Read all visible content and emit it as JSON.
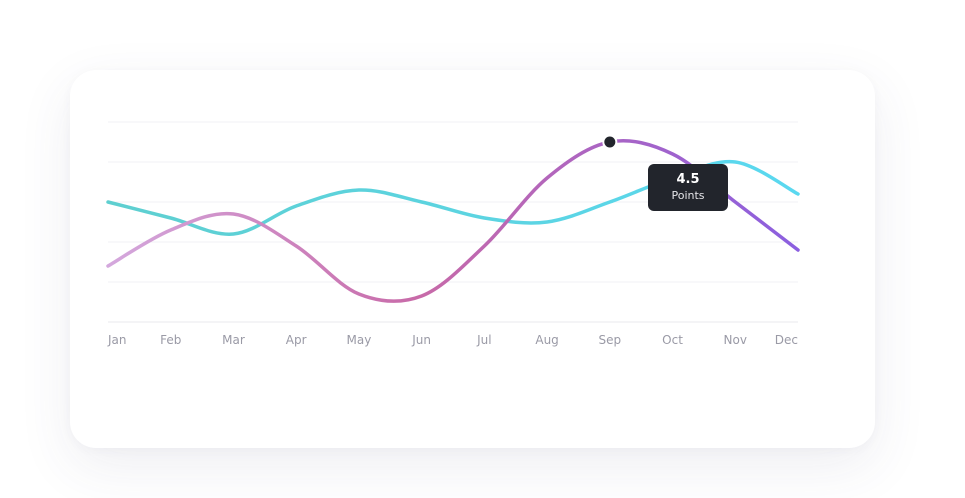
{
  "chart_data": {
    "type": "line",
    "categories": [
      "Jan",
      "Feb",
      "Mar",
      "Apr",
      "May",
      "Jun",
      "Jul",
      "Aug",
      "Sep",
      "Oct",
      "Nov",
      "Dec"
    ],
    "series": [
      {
        "values": [
          1.4,
          2.3,
          2.7,
          1.9,
          0.7,
          0.65,
          1.9,
          3.6,
          4.5,
          4.2,
          3.0,
          1.8
        ],
        "color_start": "#d4a8dd",
        "color_mid": "#c86aa8",
        "color_end": "#8b5fe0"
      },
      {
        "values": [
          3.0,
          2.6,
          2.2,
          2.9,
          3.3,
          3.0,
          2.6,
          2.5,
          3.0,
          3.6,
          4.0,
          3.2
        ],
        "color_start": "#5ecfd0",
        "color_end": "#5ad8f0"
      }
    ],
    "ylim": [
      0,
      5
    ],
    "grid": true,
    "gridlines": 6,
    "highlight": {
      "series_index": 0,
      "category": "Sep",
      "value": 4.5,
      "label": "4.5",
      "unit": "Points"
    }
  }
}
